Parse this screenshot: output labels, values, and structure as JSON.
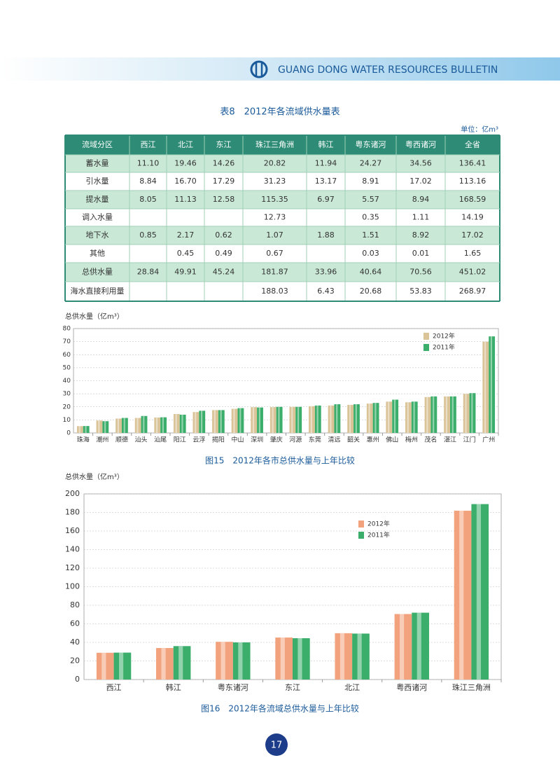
{
  "header": {
    "title": "GUANG DONG WATER RESOURCES BULLETIN"
  },
  "table": {
    "title": "表8　2012年各流域供水量表",
    "unit": "单位：亿m³",
    "columns": [
      "流域分区",
      "西江",
      "北江",
      "东江",
      "珠江三角洲",
      "韩江",
      "粤东诸河",
      "粤西诸河",
      "全省"
    ],
    "rows": [
      {
        "label": "蓄水量",
        "values": [
          "11.10",
          "19.46",
          "14.26",
          "20.82",
          "11.94",
          "24.27",
          "34.56",
          "136.41"
        ]
      },
      {
        "label": "引水量",
        "values": [
          "8.84",
          "16.70",
          "17.29",
          "31.23",
          "13.17",
          "8.91",
          "17.02",
          "113.16"
        ]
      },
      {
        "label": "提水量",
        "values": [
          "8.05",
          "11.13",
          "12.58",
          "115.35",
          "6.97",
          "5.57",
          "8.94",
          "168.59"
        ]
      },
      {
        "label": "调入水量",
        "values": [
          null,
          null,
          null,
          "12.73",
          null,
          "0.35",
          "1.11",
          "14.19"
        ]
      },
      {
        "label": "地下水",
        "values": [
          "0.85",
          "2.17",
          "0.62",
          "1.07",
          "1.88",
          "1.51",
          "8.92",
          "17.02"
        ]
      },
      {
        "label": "其他",
        "values": [
          null,
          "0.45",
          "0.49",
          "0.67",
          null,
          "0.03",
          "0.01",
          "1.65"
        ]
      },
      {
        "label": "总供水量",
        "values": [
          "28.84",
          "49.91",
          "45.24",
          "181.87",
          "33.96",
          "40.64",
          "70.56",
          "451.02"
        ]
      },
      {
        "label": "海水直接利用量",
        "values": [
          null,
          null,
          null,
          "188.03",
          "6.43",
          "20.68",
          "53.83",
          "268.97"
        ]
      }
    ]
  },
  "chart_data": [
    {
      "type": "bar",
      "title": "图15　2012年各市总供水量与上年比较",
      "y_label": "总供水量（亿m³）",
      "categories": [
        "珠海",
        "潮州",
        "顺德",
        "汕头",
        "汕尾",
        "阳江",
        "云浮",
        "揭阳",
        "中山",
        "深圳",
        "肇庆",
        "河源",
        "东莞",
        "清远",
        "韶关",
        "惠州",
        "佛山",
        "梅州",
        "茂名",
        "湛江",
        "江门",
        "广州"
      ],
      "series": [
        {
          "name": "2012年",
          "color": "#d9c397",
          "values": [
            5.2,
            9.5,
            11,
            11.5,
            11.8,
            14.5,
            16,
            17.5,
            18.5,
            19.8,
            19.8,
            20,
            20.5,
            21,
            21.5,
            22.5,
            24,
            23.5,
            27.5,
            28,
            30,
            70
          ]
        },
        {
          "name": "2011年",
          "color": "#3aae6a",
          "values": [
            5.3,
            9,
            11.5,
            13,
            12,
            14,
            17,
            17.5,
            19,
            19.5,
            20,
            20,
            21,
            22,
            22,
            23,
            25.5,
            24,
            28,
            28,
            30.5,
            74
          ]
        }
      ],
      "ylim": [
        0,
        80
      ],
      "yticks": [
        0,
        10,
        20,
        30,
        40,
        50,
        60,
        70,
        80
      ],
      "grid": true,
      "legend": "upper-right"
    },
    {
      "type": "bar",
      "title": "图16　2012年各流域总供水量与上年比较",
      "y_label": "总供水量（亿m³）",
      "categories": [
        "西江",
        "韩江",
        "粤东诸河",
        "东江",
        "北江",
        "粤西诸河",
        "珠江三角洲"
      ],
      "series": [
        {
          "name": "2012年",
          "color": "#f2a27c",
          "values": [
            28.84,
            33.96,
            40.64,
            45.24,
            49.91,
            70.56,
            181.87
          ]
        },
        {
          "name": "2011年",
          "color": "#3aae6a",
          "values": [
            29,
            36,
            40,
            44.5,
            49.5,
            72,
            189
          ]
        }
      ],
      "ylim": [
        0,
        200
      ],
      "yticks": [
        0,
        20,
        40,
        60,
        80,
        100,
        120,
        140,
        160,
        180,
        200
      ],
      "grid": true,
      "legend": "upper-center"
    }
  ],
  "page_number": "17"
}
